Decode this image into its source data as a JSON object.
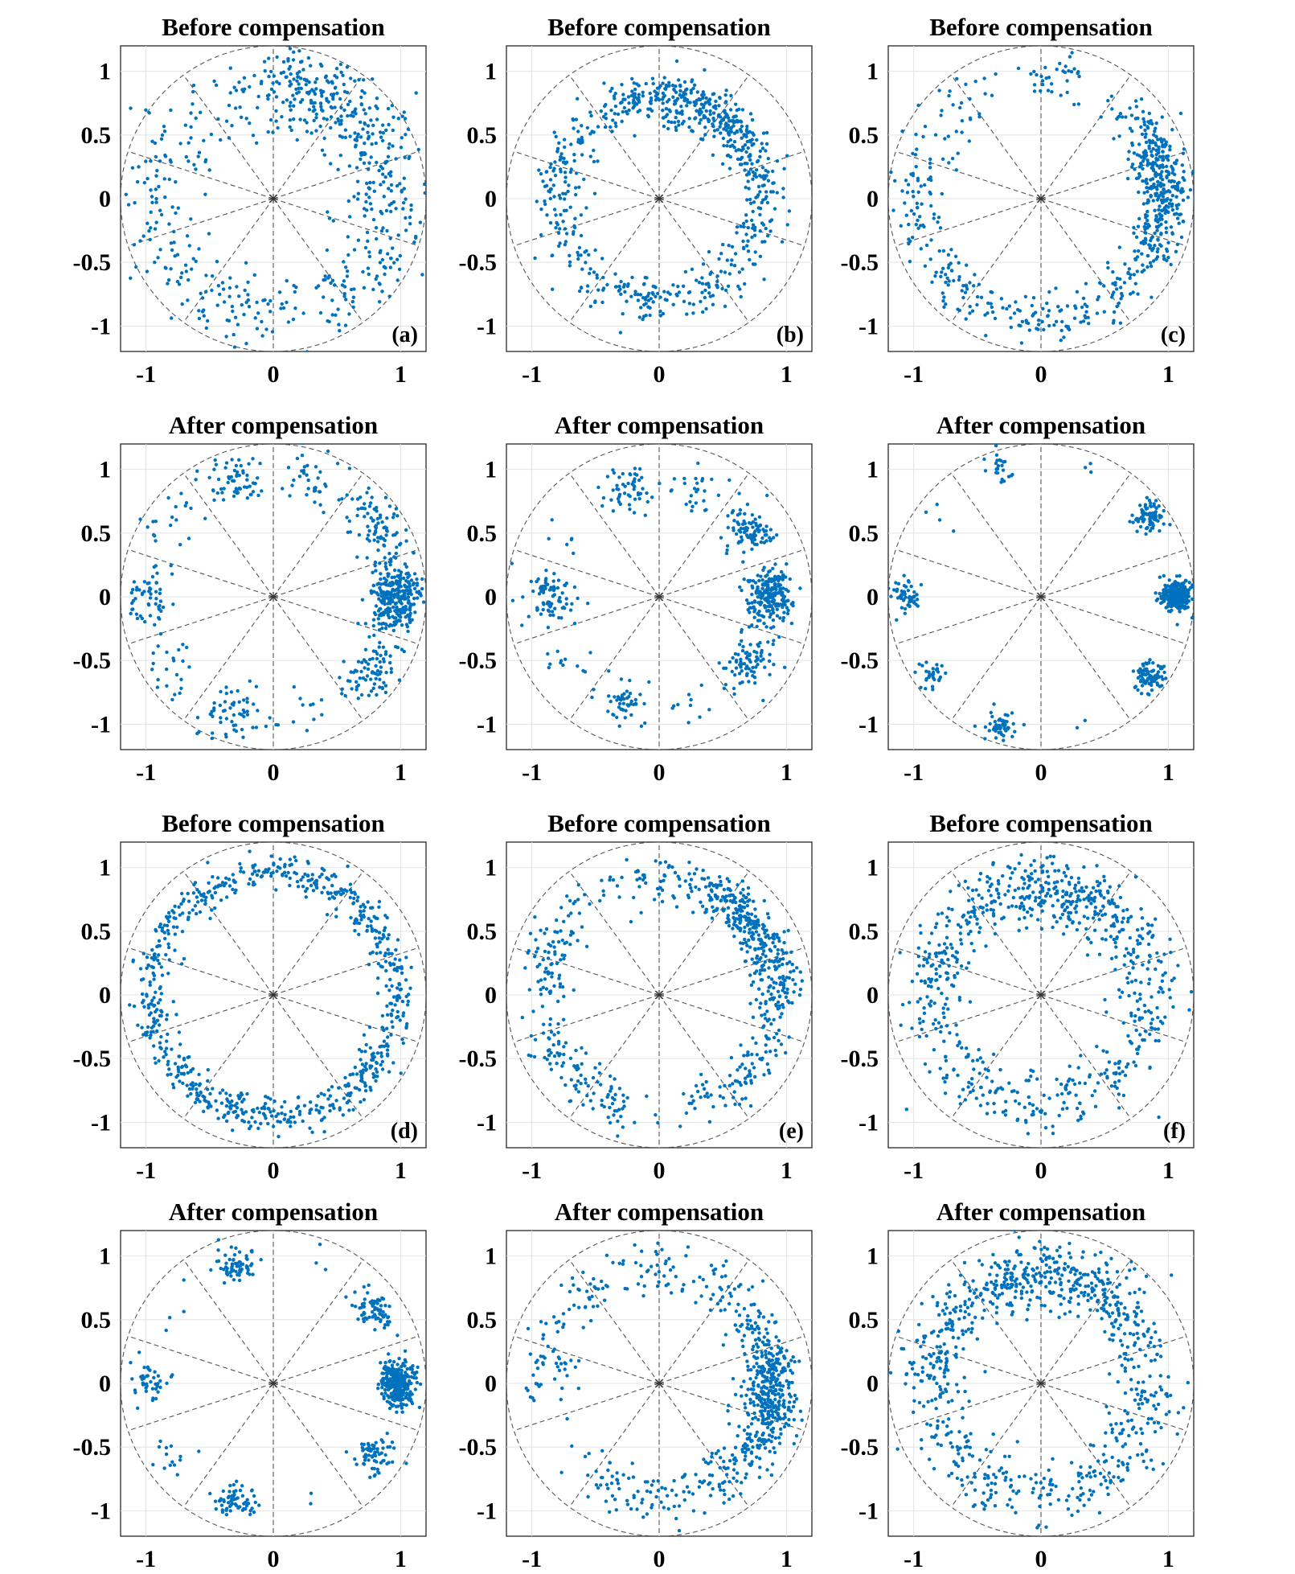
{
  "chart_data": [
    {
      "type": "scatter",
      "title": "Before compensation",
      "panel_label": "(a)",
      "xlim": [
        -1.2,
        1.2
      ],
      "ylim": [
        -1.2,
        1.2
      ],
      "xticks": [
        -1,
        0,
        1
      ],
      "yticks": [
        1,
        0.5,
        0,
        -0.5,
        -1
      ],
      "xtick_labels": [
        "-1",
        "0",
        "1"
      ],
      "ytick_labels": [
        "1",
        "0.5",
        "0",
        "-0.5",
        "-1"
      ],
      "grid": true,
      "reference": "unit circle with 10 dashed sector lines every 36°",
      "point_color": "#0072BD",
      "distribution": {
        "model": "noisy ring, partial sector clustering",
        "radius": 0.92,
        "radial_sd": 0.17,
        "angle_sd_deg": 14,
        "points": 640,
        "cluster_angles_deg": [
          72,
          36,
          0,
          -36,
          -72,
          -108,
          -144,
          180,
          144,
          108
        ],
        "cluster_weights": [
          3,
          2.5,
          1.5,
          1.2,
          1,
          0.9,
          0.9,
          1,
          0.8,
          0.6
        ]
      }
    },
    {
      "type": "scatter",
      "title": "Before compensation",
      "panel_label": "(b)",
      "xlim": [
        -1.2,
        1.2
      ],
      "ylim": [
        -1.2,
        1.2
      ],
      "xticks": [
        -1,
        0,
        1
      ],
      "yticks": [
        1,
        0.5,
        0,
        -0.5,
        -1
      ],
      "xtick_labels": [
        "-1",
        "0",
        "1"
      ],
      "ytick_labels": [
        "1",
        "0.5",
        "0",
        "-0.5",
        "-1"
      ],
      "grid": true,
      "reference": "unit circle with 10 dashed sector lines every 36°",
      "point_color": "#0072BD",
      "distribution": {
        "model": "noisy ring",
        "radius": 0.8,
        "radial_sd": 0.1,
        "angle_sd_deg": 18,
        "points": 760,
        "cluster_angles_deg": [
          80,
          50,
          20,
          -10,
          -45,
          -80,
          -110,
          -150,
          170,
          130
        ],
        "cluster_weights": [
          3,
          3,
          1.2,
          1,
          1,
          1,
          1,
          1,
          1,
          1.2
        ]
      }
    },
    {
      "type": "scatter",
      "title": "Before compensation",
      "panel_label": "(c)",
      "xlim": [
        -1.2,
        1.2
      ],
      "ylim": [
        -1.2,
        1.2
      ],
      "xticks": [
        -1,
        0,
        1
      ],
      "yticks": [
        1,
        0.5,
        0,
        -0.5,
        -1
      ],
      "xtick_labels": [
        "-1",
        "0",
        "1"
      ],
      "ytick_labels": [
        "1",
        "0.5",
        "0",
        "-0.5",
        "-1"
      ],
      "grid": true,
      "reference": "unit circle with 10 dashed sector lines every 36°",
      "point_color": "#0072BD",
      "distribution": {
        "model": "noisy ring, sector gaps",
        "radius": 0.96,
        "radial_sd": 0.1,
        "angle_sd_deg": 11,
        "points": 690,
        "cluster_angles_deg": [
          18,
          0,
          -18,
          36,
          -50,
          -90,
          -130,
          -165,
          165,
          130,
          85
        ],
        "cluster_weights": [
          3,
          3,
          2,
          1.5,
          1.5,
          1.5,
          1.5,
          1.5,
          1.2,
          0.8,
          0.8
        ]
      }
    },
    {
      "type": "scatter",
      "title": "After compensation",
      "panel_label": "",
      "xlim": [
        -1.2,
        1.2
      ],
      "ylim": [
        -1.2,
        1.2
      ],
      "xticks": [
        -1,
        0,
        1
      ],
      "yticks": [
        1,
        0.5,
        0,
        -0.5,
        -1
      ],
      "xtick_labels": [
        "-1",
        "0",
        "1"
      ],
      "ytick_labels": [
        "1",
        "0.5",
        "0",
        "-0.5",
        "-1"
      ],
      "grid": true,
      "reference": "unit circle with 10 dashed sector lines every 36°",
      "point_color": "#0072BD",
      "distribution": {
        "model": "10-PSK clusters",
        "radius": 0.98,
        "radial_sd": 0.1,
        "angle_sd_deg": 8,
        "points": 720,
        "cluster_angles_deg": [
          0,
          36,
          72,
          108,
          144,
          180,
          216,
          252,
          288,
          324
        ],
        "cluster_weights": [
          5,
          1.5,
          0.6,
          1.2,
          0.2,
          1.2,
          0.3,
          1,
          0.2,
          1.6
        ]
      }
    },
    {
      "type": "scatter",
      "title": "After compensation",
      "panel_label": "",
      "xlim": [
        -1.2,
        1.2
      ],
      "ylim": [
        -1.2,
        1.2
      ],
      "xticks": [
        -1,
        0,
        1
      ],
      "yticks": [
        1,
        0.5,
        0,
        -0.5,
        -1
      ],
      "xtick_labels": [
        "-1",
        "0",
        "1"
      ],
      "ytick_labels": [
        "1",
        "0.5",
        "0",
        "-0.5",
        "-1"
      ],
      "grid": true,
      "reference": "unit circle with 10 dashed sector lines every 36°",
      "point_color": "#0072BD",
      "distribution": {
        "model": "10-PSK clusters",
        "radius": 0.88,
        "radial_sd": 0.09,
        "angle_sd_deg": 7,
        "points": 650,
        "cluster_angles_deg": [
          0,
          36,
          72,
          108,
          144,
          180,
          216,
          252,
          288,
          324
        ],
        "cluster_weights": [
          4,
          1.5,
          0.5,
          1,
          0.2,
          1.2,
          0.5,
          1,
          0.2,
          1.6
        ]
      }
    },
    {
      "type": "scatter",
      "title": "After compensation",
      "panel_label": "",
      "xlim": [
        -1.2,
        1.2
      ],
      "ylim": [
        -1.2,
        1.2
      ],
      "xticks": [
        -1,
        0,
        1
      ],
      "yticks": [
        1,
        0.5,
        0,
        -0.5,
        -1
      ],
      "xtick_labels": [
        "-1",
        "0",
        "1"
      ],
      "ytick_labels": [
        "1",
        "0.5",
        "0",
        "-0.5",
        "-1"
      ],
      "grid": true,
      "reference": "unit circle with 10 dashed sector lines every 36°",
      "point_color": "#0072BD",
      "distribution": {
        "model": "10-PSK clusters",
        "radius": 1.06,
        "radial_sd": 0.06,
        "angle_sd_deg": 3.2,
        "points": 640,
        "cluster_angles_deg": [
          0,
          36,
          72,
          108,
          144,
          180,
          216,
          252,
          288,
          324
        ],
        "cluster_weights": [
          5,
          1.5,
          0.1,
          0.6,
          0.1,
          1,
          0.4,
          1,
          0.1,
          1.5
        ]
      }
    },
    {
      "type": "scatter",
      "title": "Before compensation",
      "panel_label": "(d)",
      "xlim": [
        -1.2,
        1.2
      ],
      "ylim": [
        -1.2,
        1.2
      ],
      "xticks": [
        -1,
        0,
        1
      ],
      "yticks": [
        1,
        0.5,
        0,
        -0.5,
        -1
      ],
      "xtick_labels": [
        "-1",
        "0",
        "1"
      ],
      "ytick_labels": [
        "1",
        "0.5",
        "0",
        "-0.5",
        "-1"
      ],
      "grid": true,
      "reference": "unit circle with 10 dashed sector lines every 36°",
      "point_color": "#0072BD",
      "distribution": {
        "model": "uniform noisy ring",
        "radius": 0.96,
        "radial_sd": 0.07,
        "angle_sd_deg": 180,
        "points": 780,
        "cluster_angles_deg": [
          0
        ],
        "cluster_weights": [
          1
        ]
      }
    },
    {
      "type": "scatter",
      "title": "Before compensation",
      "panel_label": "(e)",
      "xlim": [
        -1.2,
        1.2
      ],
      "ylim": [
        -1.2,
        1.2
      ],
      "xticks": [
        -1,
        0,
        1
      ],
      "yticks": [
        1,
        0.5,
        0,
        -0.5,
        -1
      ],
      "xtick_labels": [
        "-1",
        "0",
        "1"
      ],
      "ytick_labels": [
        "1",
        "0.5",
        "0",
        "-0.5",
        "-1"
      ],
      "grid": true,
      "reference": "unit circle with 10 dashed sector lines every 36°",
      "point_color": "#0072BD",
      "distribution": {
        "model": "noisy ring, sector clustering",
        "radius": 0.92,
        "radial_sd": 0.09,
        "angle_sd_deg": 12,
        "points": 700,
        "cluster_angles_deg": [
          50,
          25,
          0,
          -30,
          -60,
          -120,
          -150,
          165,
          130,
          90
        ],
        "cluster_weights": [
          4,
          3,
          2,
          1.3,
          1,
          1.2,
          1.2,
          1.2,
          0.6,
          0.9
        ]
      }
    },
    {
      "type": "scatter",
      "title": "Before compensation",
      "panel_label": "(f)",
      "xlim": [
        -1.2,
        1.2
      ],
      "ylim": [
        -1.2,
        1.2
      ],
      "xticks": [
        -1,
        0,
        1
      ],
      "yticks": [
        1,
        0.5,
        0,
        -0.5,
        -1
      ],
      "xtick_labels": [
        "-1",
        "0",
        "1"
      ],
      "ytick_labels": [
        "1",
        "0.5",
        "0",
        "-0.5",
        "-1"
      ],
      "grid": true,
      "reference": "unit circle with 10 dashed sector lines every 36°",
      "point_color": "#0072BD",
      "distribution": {
        "model": "noisy ring",
        "radius": 0.85,
        "radial_sd": 0.13,
        "angle_sd_deg": 20,
        "points": 740,
        "cluster_angles_deg": [
          90,
          50,
          10,
          -30,
          -70,
          -110,
          -150,
          170,
          130
        ],
        "cluster_weights": [
          3,
          2,
          1,
          1,
          1,
          1,
          1,
          1.3,
          1.3
        ]
      }
    },
    {
      "type": "scatter",
      "title": "After compensation",
      "panel_label": "",
      "xlim": [
        -1.2,
        1.2
      ],
      "ylim": [
        -1.2,
        1.2
      ],
      "xticks": [
        -1,
        0,
        1
      ],
      "yticks": [
        1,
        0.5,
        0,
        -0.5,
        -1
      ],
      "xtick_labels": [
        "-1",
        "0",
        "1"
      ],
      "ytick_labels": [
        "1",
        "0.5",
        "0",
        "-0.5",
        "-1"
      ],
      "grid": true,
      "reference": "unit circle with 10 dashed sector lines every 36°",
      "point_color": "#0072BD",
      "distribution": {
        "model": "10-PSK clusters",
        "radius": 0.98,
        "radial_sd": 0.07,
        "angle_sd_deg": 5,
        "points": 620,
        "cluster_angles_deg": [
          0,
          36,
          72,
          108,
          144,
          180,
          216,
          252,
          288,
          324
        ],
        "cluster_weights": [
          5,
          1.3,
          0.1,
          1,
          0.1,
          1,
          0.3,
          1,
          0.1,
          1.4
        ]
      }
    },
    {
      "type": "scatter",
      "title": "After compensation",
      "panel_label": "",
      "xlim": [
        -1.2,
        1.2
      ],
      "ylim": [
        -1.2,
        1.2
      ],
      "xticks": [
        -1,
        0,
        1
      ],
      "yticks": [
        1,
        0.5,
        0,
        -0.5,
        -1
      ],
      "xtick_labels": [
        "-1",
        "0",
        "1"
      ],
      "ytick_labels": [
        "1",
        "0.5",
        "0",
        "-0.5",
        "-1"
      ],
      "grid": true,
      "reference": "unit circle with 10 dashed sector lines every 36°",
      "point_color": "#0072BD",
      "distribution": {
        "model": "noisy ring, strong 0° sector",
        "radius": 0.9,
        "radial_sd": 0.1,
        "angle_sd_deg": 12,
        "points": 720,
        "cluster_angles_deg": [
          0,
          -20,
          -45,
          30,
          60,
          95,
          130,
          170,
          -110,
          -80
        ],
        "cluster_weights": [
          5,
          3,
          2,
          1.5,
          1,
          1,
          1.2,
          1,
          1,
          1
        ]
      }
    },
    {
      "type": "scatter",
      "title": "After compensation",
      "panel_label": "",
      "xlim": [
        -1.2,
        1.2
      ],
      "ylim": [
        -1.2,
        1.2
      ],
      "xticks": [
        -1,
        0,
        1
      ],
      "yticks": [
        1,
        0.5,
        0,
        -0.5,
        -1
      ],
      "xtick_labels": [
        "-1",
        "0",
        "1"
      ],
      "ytick_labels": [
        "1",
        "0.5",
        "0",
        "-0.5",
        "-1"
      ],
      "grid": true,
      "reference": "unit circle with 10 dashed sector lines every 36°",
      "point_color": "#0072BD",
      "distribution": {
        "model": "noisy ring",
        "radius": 0.86,
        "radial_sd": 0.12,
        "angle_sd_deg": 22,
        "points": 820,
        "cluster_angles_deg": [
          90,
          50,
          10,
          -30,
          -70,
          -110,
          -150,
          170,
          130
        ],
        "cluster_weights": [
          3,
          2,
          1,
          1.2,
          1,
          1,
          1,
          1.3,
          1.3
        ]
      }
    }
  ]
}
